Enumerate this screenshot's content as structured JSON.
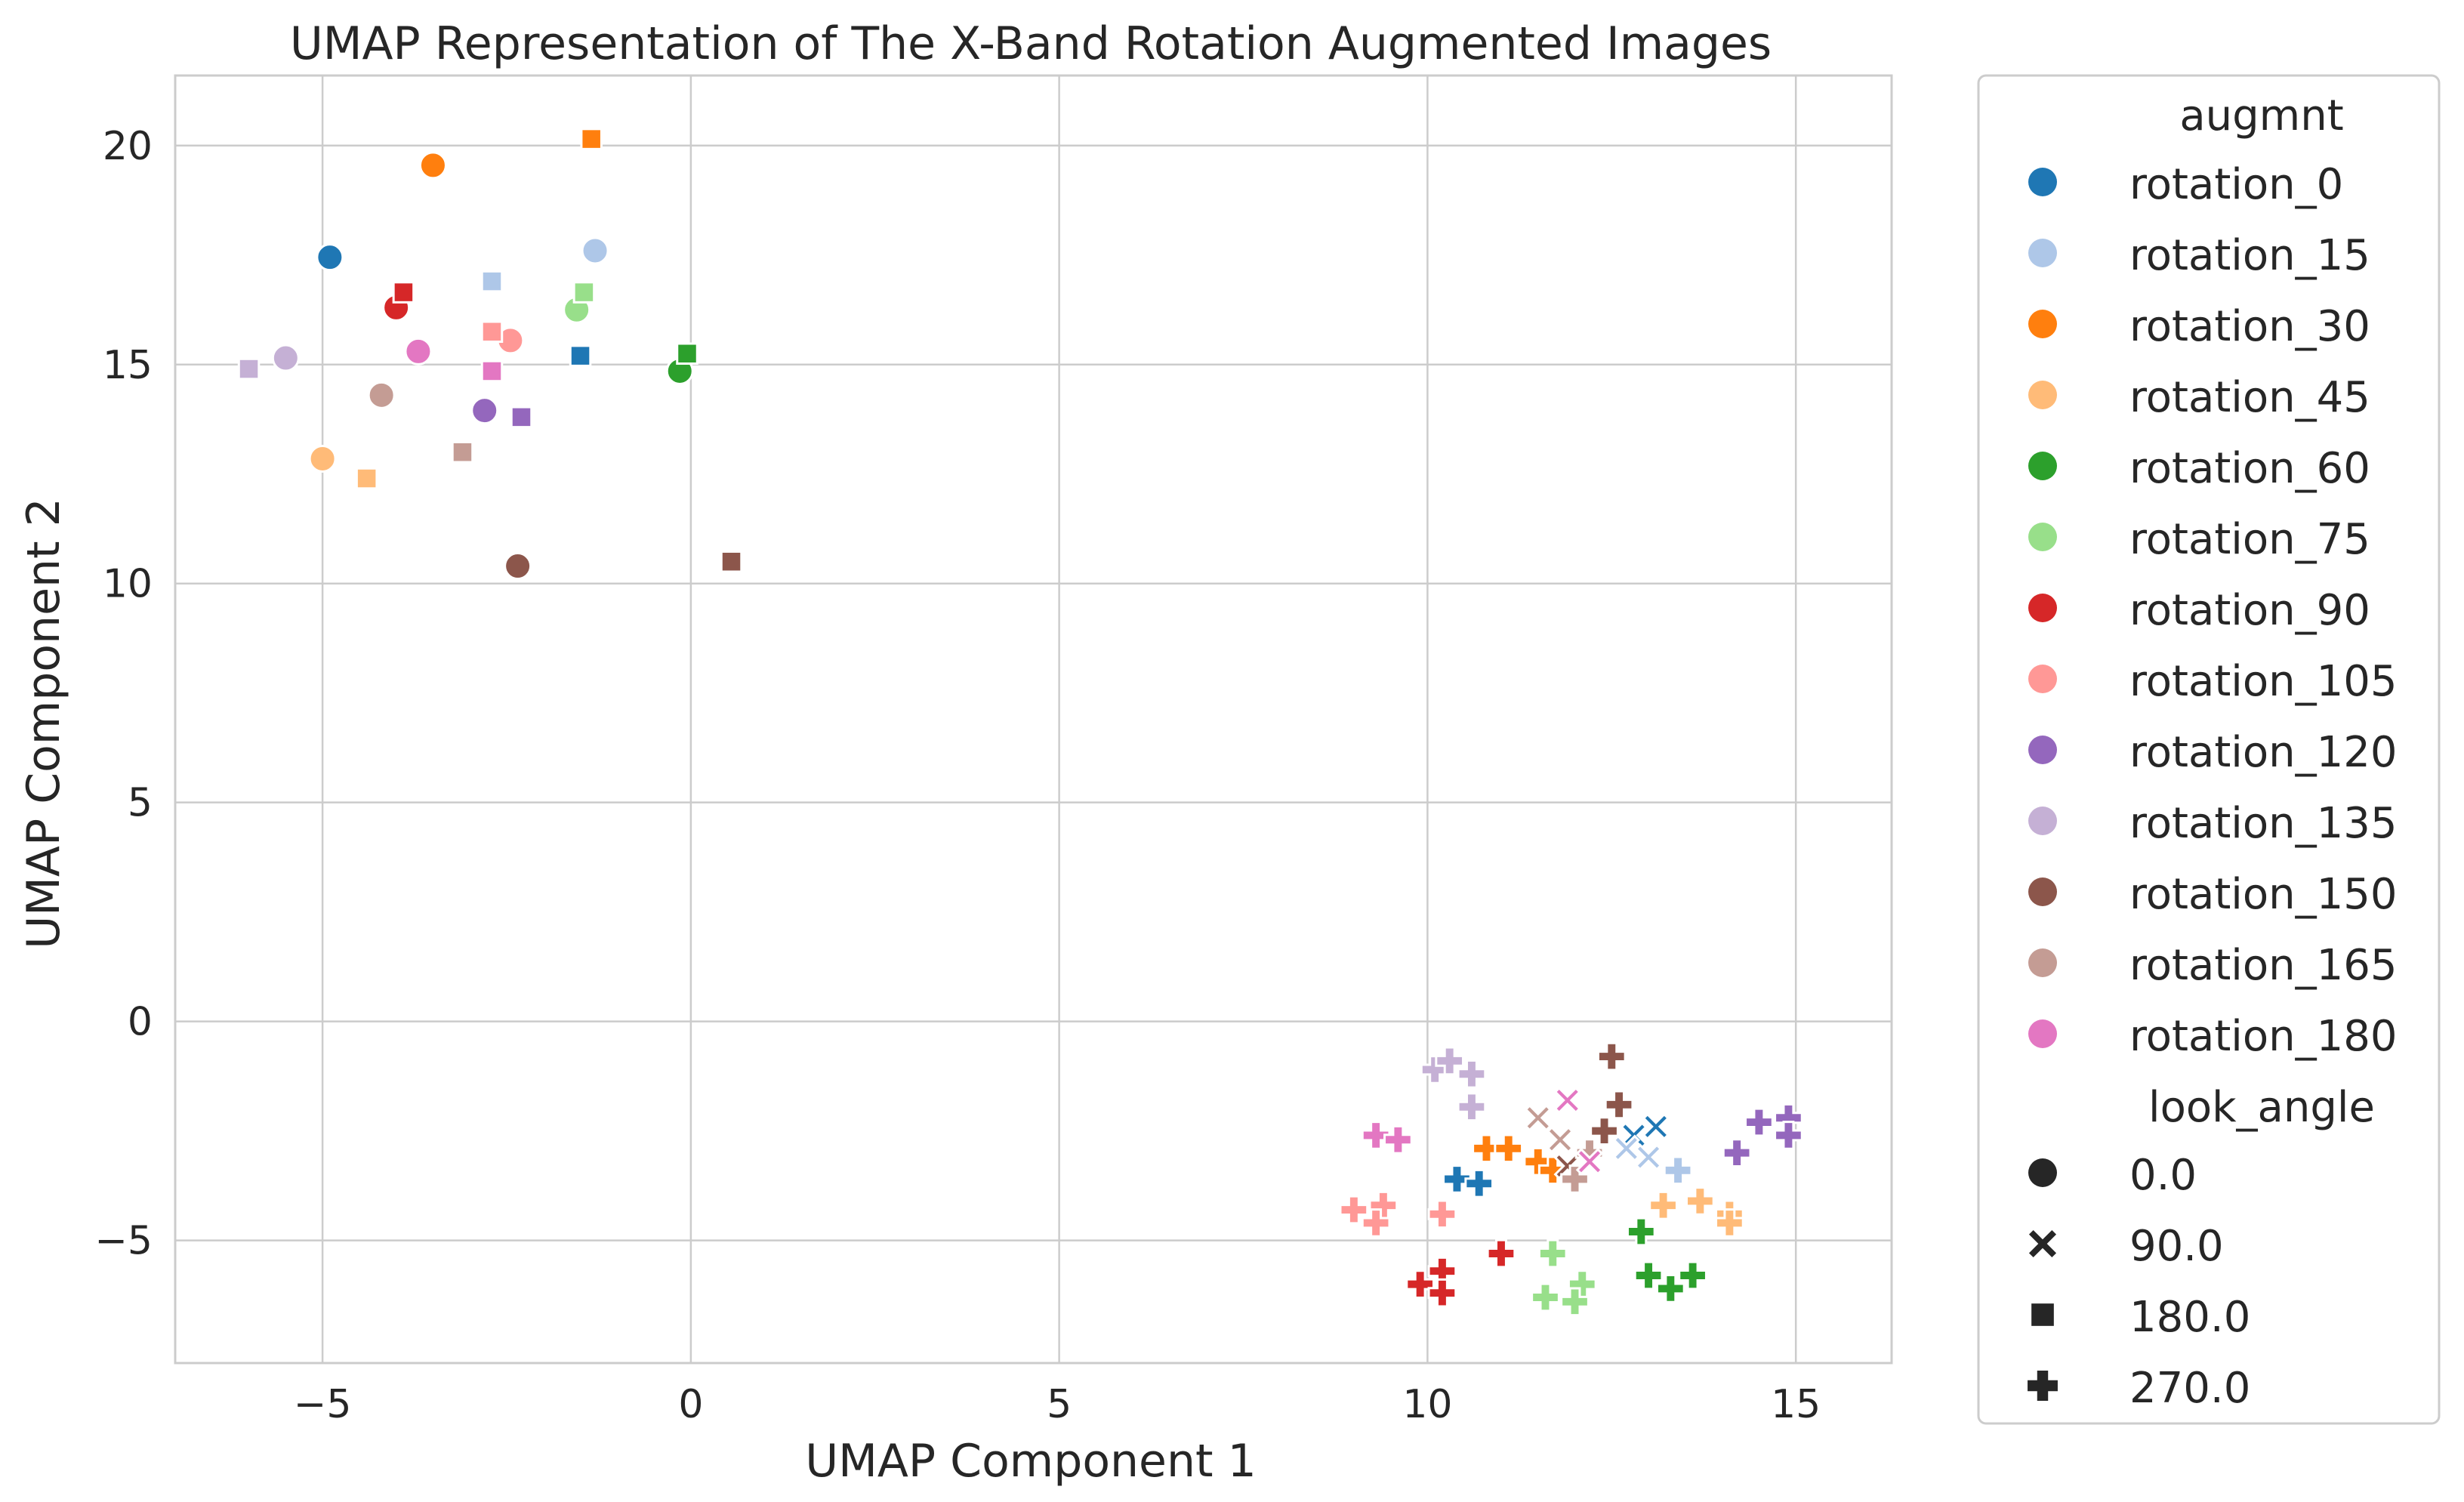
{
  "chart_data": {
    "type": "scatter",
    "title": "UMAP Representation of The X-Band Rotation Augmented Images",
    "xlabel": "UMAP Component 1",
    "ylabel": "UMAP Component 2",
    "xlim": [
      -7,
      16.3
    ],
    "ylim": [
      -7.8,
      21.6
    ],
    "xticks": [
      -5,
      0,
      5,
      10,
      15
    ],
    "yticks": [
      -5,
      0,
      5,
      10,
      15,
      20
    ],
    "grid": true,
    "legend_position": "outside-right",
    "hue_title": "augmnt",
    "style_title": "look_angle",
    "styles": [
      {
        "label": "0.0",
        "marker": "circle"
      },
      {
        "label": "90.0",
        "marker": "x"
      },
      {
        "label": "180.0",
        "marker": "square"
      },
      {
        "label": "270.0",
        "marker": "plus"
      }
    ],
    "series": [
      {
        "name": "rotation_0",
        "color": "#1f77b4",
        "points": [
          {
            "x": -4.9,
            "y": 17.45,
            "style": "0.0"
          },
          {
            "x": -1.5,
            "y": 15.2,
            "style": "180.0"
          },
          {
            "x": 13.1,
            "y": -2.4,
            "style": "90.0"
          },
          {
            "x": 12.8,
            "y": -2.6,
            "style": "90.0"
          },
          {
            "x": 10.4,
            "y": -3.6,
            "style": "270.0"
          },
          {
            "x": 10.7,
            "y": -3.7,
            "style": "270.0"
          }
        ]
      },
      {
        "name": "rotation_15",
        "color": "#aec7e8",
        "points": [
          {
            "x": -1.3,
            "y": 17.6,
            "style": "0.0"
          },
          {
            "x": -2.7,
            "y": 16.9,
            "style": "180.0"
          },
          {
            "x": 12.7,
            "y": -2.9,
            "style": "90.0"
          },
          {
            "x": 13.0,
            "y": -3.1,
            "style": "90.0"
          },
          {
            "x": 13.4,
            "y": -3.4,
            "style": "270.0"
          },
          {
            "x": 10.6,
            "y": -1.9,
            "style": "270.0"
          }
        ]
      },
      {
        "name": "rotation_30",
        "color": "#ff7f0e",
        "points": [
          {
            "x": -3.5,
            "y": 19.55,
            "style": "0.0"
          },
          {
            "x": -1.35,
            "y": 20.15,
            "style": "180.0"
          },
          {
            "x": 10.8,
            "y": -2.9,
            "style": "270.0"
          },
          {
            "x": 11.1,
            "y": -2.9,
            "style": "270.0"
          },
          {
            "x": 11.5,
            "y": -3.2,
            "style": "270.0"
          },
          {
            "x": 11.7,
            "y": -3.4,
            "style": "270.0"
          }
        ]
      },
      {
        "name": "rotation_45",
        "color": "#ffbb78",
        "points": [
          {
            "x": -5.0,
            "y": 12.85,
            "style": "0.0"
          },
          {
            "x": -4.4,
            "y": 12.4,
            "style": "180.0"
          },
          {
            "x": 13.2,
            "y": -4.2,
            "style": "270.0"
          },
          {
            "x": 13.7,
            "y": -4.1,
            "style": "270.0"
          },
          {
            "x": 14.1,
            "y": -4.4,
            "style": "270.0"
          },
          {
            "x": 14.1,
            "y": -4.6,
            "style": "270.0"
          }
        ]
      },
      {
        "name": "rotation_60",
        "color": "#2ca02c",
        "points": [
          {
            "x": -0.15,
            "y": 14.85,
            "style": "0.0"
          },
          {
            "x": -0.05,
            "y": 15.25,
            "style": "180.0"
          },
          {
            "x": 12.9,
            "y": -4.8,
            "style": "270.0"
          },
          {
            "x": 13.0,
            "y": -5.8,
            "style": "270.0"
          },
          {
            "x": 13.3,
            "y": -6.1,
            "style": "270.0"
          },
          {
            "x": 13.6,
            "y": -5.8,
            "style": "270.0"
          }
        ]
      },
      {
        "name": "rotation_75",
        "color": "#98df8a",
        "points": [
          {
            "x": -1.55,
            "y": 16.25,
            "style": "0.0"
          },
          {
            "x": -1.45,
            "y": 16.65,
            "style": "180.0"
          },
          {
            "x": 11.7,
            "y": -5.3,
            "style": "270.0"
          },
          {
            "x": 12.1,
            "y": -6.0,
            "style": "270.0"
          },
          {
            "x": 11.6,
            "y": -6.3,
            "style": "270.0"
          },
          {
            "x": 12.0,
            "y": -6.4,
            "style": "270.0"
          }
        ]
      },
      {
        "name": "rotation_90",
        "color": "#d62728",
        "points": [
          {
            "x": -4.0,
            "y": 16.3,
            "style": "0.0"
          },
          {
            "x": -3.9,
            "y": 16.65,
            "style": "180.0"
          },
          {
            "x": 9.9,
            "y": -6.0,
            "style": "270.0"
          },
          {
            "x": 10.2,
            "y": -5.7,
            "style": "270.0"
          },
          {
            "x": 10.2,
            "y": -6.2,
            "style": "270.0"
          },
          {
            "x": 11.0,
            "y": -5.3,
            "style": "270.0"
          }
        ]
      },
      {
        "name": "rotation_105",
        "color": "#ff9896",
        "points": [
          {
            "x": -2.45,
            "y": 15.55,
            "style": "0.0"
          },
          {
            "x": -2.7,
            "y": 15.75,
            "style": "180.0"
          },
          {
            "x": 9.0,
            "y": -4.3,
            "style": "270.0"
          },
          {
            "x": 9.4,
            "y": -4.2,
            "style": "270.0"
          },
          {
            "x": 9.3,
            "y": -4.6,
            "style": "270.0"
          },
          {
            "x": 10.2,
            "y": -4.4,
            "style": "270.0"
          }
        ]
      },
      {
        "name": "rotation_120",
        "color": "#9467bd",
        "points": [
          {
            "x": -2.8,
            "y": 13.95,
            "style": "0.0"
          },
          {
            "x": -2.3,
            "y": 13.8,
            "style": "180.0"
          },
          {
            "x": 14.5,
            "y": -2.3,
            "style": "270.0"
          },
          {
            "x": 14.9,
            "y": -2.2,
            "style": "270.0"
          },
          {
            "x": 14.9,
            "y": -2.6,
            "style": "270.0"
          },
          {
            "x": 14.2,
            "y": -3.0,
            "style": "270.0"
          }
        ]
      },
      {
        "name": "rotation_135",
        "color": "#c5b0d5",
        "points": [
          {
            "x": -5.5,
            "y": 15.15,
            "style": "0.0"
          },
          {
            "x": -6.0,
            "y": 14.9,
            "style": "180.0"
          },
          {
            "x": 10.1,
            "y": -1.1,
            "style": "270.0"
          },
          {
            "x": 10.3,
            "y": -0.9,
            "style": "270.0"
          },
          {
            "x": 10.6,
            "y": -1.2,
            "style": "270.0"
          },
          {
            "x": 10.6,
            "y": -1.95,
            "style": "270.0"
          }
        ]
      },
      {
        "name": "rotation_150",
        "color": "#8c564b",
        "points": [
          {
            "x": -2.35,
            "y": 10.4,
            "style": "0.0"
          },
          {
            "x": 0.55,
            "y": 10.5,
            "style": "180.0"
          },
          {
            "x": 12.5,
            "y": -0.8,
            "style": "270.0"
          },
          {
            "x": 12.6,
            "y": -1.9,
            "style": "270.0"
          },
          {
            "x": 12.4,
            "y": -2.5,
            "style": "270.0"
          },
          {
            "x": 11.9,
            "y": -3.3,
            "style": "90.0"
          }
        ]
      },
      {
        "name": "rotation_165",
        "color": "#c49c94",
        "points": [
          {
            "x": -4.2,
            "y": 14.3,
            "style": "0.0"
          },
          {
            "x": -3.1,
            "y": 13.0,
            "style": "180.0"
          },
          {
            "x": 11.5,
            "y": -2.2,
            "style": "90.0"
          },
          {
            "x": 11.8,
            "y": -2.7,
            "style": "90.0"
          },
          {
            "x": 12.2,
            "y": -3.0,
            "style": "270.0"
          },
          {
            "x": 12.0,
            "y": -3.6,
            "style": "270.0"
          }
        ]
      },
      {
        "name": "rotation_180",
        "color": "#e377c2",
        "points": [
          {
            "x": -3.7,
            "y": 15.3,
            "style": "0.0"
          },
          {
            "x": -2.7,
            "y": 14.85,
            "style": "180.0"
          },
          {
            "x": 9.3,
            "y": -2.6,
            "style": "270.0"
          },
          {
            "x": 9.6,
            "y": -2.7,
            "style": "270.0"
          },
          {
            "x": 11.9,
            "y": -1.8,
            "style": "90.0"
          },
          {
            "x": 12.2,
            "y": -3.2,
            "style": "90.0"
          }
        ]
      }
    ]
  }
}
